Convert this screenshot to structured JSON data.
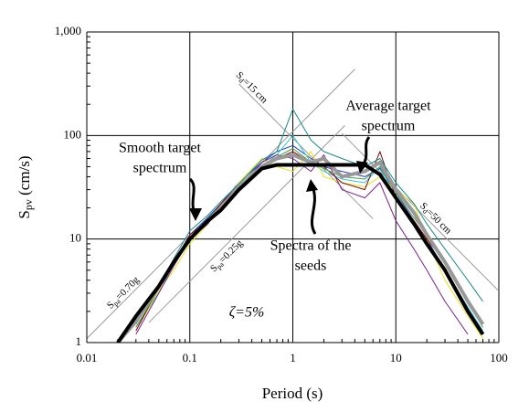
{
  "chart_data": {
    "type": "line",
    "xlabel": "Period (s)",
    "ylabel": {
      "main": "S",
      "sub": "pv",
      "rest": " (cm/s)"
    },
    "log_x": true,
    "log_y": true,
    "grid": true,
    "xlim": [
      0.01,
      100
    ],
    "ylim": [
      1,
      1000
    ],
    "xticks": [
      0.01,
      0.1,
      1,
      10,
      100
    ],
    "yticks": [
      1,
      10,
      100,
      {
        "value": 1000,
        "label": "1,000"
      }
    ],
    "x": [
      0.02,
      0.03,
      0.05,
      0.07,
      0.1,
      0.15,
      0.2,
      0.3,
      0.5,
      0.7,
      1,
      1.5,
      2,
      3,
      5,
      7,
      10,
      15,
      20,
      30,
      50,
      70,
      100
    ],
    "series": [
      {
        "color": "#1f3fbf",
        "width": 1,
        "values": [
          null,
          1.5,
          3.5,
          6,
          11,
          16,
          22,
          35,
          55,
          70,
          80,
          60,
          50,
          45,
          40,
          48,
          28,
          15,
          10,
          5,
          2,
          1.2,
          null
        ]
      },
      {
        "color": "#30c8d8",
        "width": 1,
        "values": [
          null,
          1.4,
          3,
          6,
          10,
          15,
          20,
          30,
          50,
          65,
          100,
          55,
          45,
          38,
          35,
          50,
          25,
          14,
          9,
          5,
          2.2,
          1.3,
          null
        ]
      },
      {
        "color": "#e8e020",
        "width": 1,
        "values": [
          null,
          1.3,
          3.2,
          5,
          9,
          14,
          20,
          35,
          60,
          50,
          45,
          70,
          40,
          35,
          32,
          40,
          30,
          22,
          10,
          4,
          1.8,
          1.1,
          null
        ]
      },
      {
        "color": "#7b1f8f",
        "width": 1,
        "values": [
          null,
          1.2,
          3,
          5.5,
          10,
          14,
          21,
          30,
          55,
          65,
          60,
          45,
          65,
          30,
          25,
          35,
          15,
          8,
          5,
          2.5,
          1.2,
          null,
          null
        ]
      },
      {
        "color": "#7a0a0a",
        "width": 1,
        "values": [
          null,
          1.3,
          3.4,
          6,
          11,
          15,
          22,
          33,
          50,
          60,
          70,
          55,
          50,
          35,
          30,
          70,
          25,
          15,
          10,
          6,
          2.5,
          1.5,
          null
        ]
      },
      {
        "color": "#1a8a8a",
        "width": 1,
        "values": [
          null,
          1.5,
          3.5,
          6.5,
          12,
          17,
          23,
          34,
          58,
          70,
          180,
          90,
          70,
          60,
          50,
          60,
          35,
          22,
          14,
          8,
          4,
          2.5,
          null
        ]
      },
      {
        "color": "#4a9a4a",
        "width": 1,
        "values": [
          null,
          1.4,
          3.3,
          6,
          10,
          15,
          21,
          32,
          52,
          62,
          75,
          55,
          48,
          40,
          38,
          50,
          28,
          16,
          11,
          6,
          2.5,
          1.4,
          null
        ]
      },
      {
        "color": "#999999",
        "width": 4,
        "values": [
          1,
          1.6,
          3.5,
          6,
          10,
          15,
          20,
          32,
          50,
          60,
          65,
          55,
          60,
          40,
          45,
          55,
          30,
          18,
          11,
          6,
          2.5,
          1.5,
          null
        ]
      },
      {
        "color": "#000000",
        "width": 4,
        "values": [
          1,
          1.8,
          3.5,
          6,
          10,
          15,
          19,
          30,
          48,
          52,
          52,
          52,
          52,
          52,
          52,
          42,
          25,
          14,
          9,
          5,
          2,
          1.2,
          null
        ]
      }
    ],
    "reference_lines": [
      {
        "kind": "Sd",
        "value": 15,
        "main": "S",
        "sub": "d",
        "rest": "=15 cm"
      },
      {
        "kind": "Sd",
        "value": 50,
        "main": "S",
        "sub": "d",
        "rest": "=50 cm"
      },
      {
        "kind": "Spa",
        "value": 0.7,
        "main": "S",
        "sub": "pa",
        "rest": "=0.70g"
      },
      {
        "kind": "Spa",
        "value": 0.25,
        "main": "S",
        "sub": "pa",
        "rest": "=0.25g"
      }
    ],
    "annotations": {
      "smooth": [
        "Smooth target",
        "spectrum"
      ],
      "average": [
        "Average target",
        "spectrum"
      ],
      "seeds": [
        "Spectra of the",
        "seeds"
      ],
      "damping": "ζ=5%"
    }
  }
}
